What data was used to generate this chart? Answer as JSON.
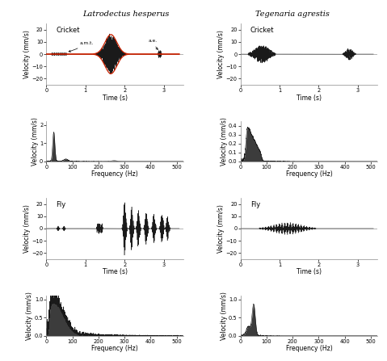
{
  "title_left": "Latrodectus hesperus",
  "title_right": "Tegenaria agrestis",
  "time_ylim": [
    -25,
    25
  ],
  "time_yticks": [
    -20,
    -10,
    0,
    10,
    20
  ],
  "time_xticks": [
    0,
    1,
    2,
    3
  ],
  "freq_xlim": [
    0,
    525
  ],
  "freq_xticks": [
    0,
    100,
    200,
    300,
    400,
    500
  ],
  "cricket_lh_freq_ylim": [
    0,
    2.2
  ],
  "cricket_lh_freq_yticks": [
    0,
    1,
    2
  ],
  "cricket_ta_freq_ylim": [
    0,
    0.45
  ],
  "cricket_ta_freq_yticks": [
    0,
    0.1,
    0.2,
    0.3,
    0.4
  ],
  "fly_lh_freq_ylim": [
    0,
    1.1
  ],
  "fly_lh_freq_yticks": [
    0,
    0.5,
    1.0
  ],
  "fly_ta_freq_ylim": [
    0,
    1.1
  ],
  "fly_ta_freq_yticks": [
    0,
    0.5,
    1.0
  ],
  "label_cricket": "Cricket",
  "label_fly": "Fly",
  "xlabel_time": "Time (s)",
  "xlabel_freq": "Frequency (Hz)",
  "ylabel_vel": "Velocity (mm/s)",
  "annotation_amt": "a.m.t.",
  "annotation_ae": "a.e.",
  "line_color": "#1a1a1a",
  "envelope_color": "#cc2200",
  "zero_line_color": "#999999",
  "spine_color": "#888888"
}
